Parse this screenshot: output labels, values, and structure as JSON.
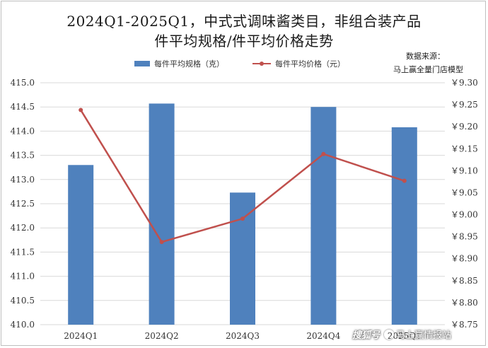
{
  "title_line1": "2024Q1-2025Q1，中式式调味酱类目，非组合装产品",
  "title_line2": "件平均规格/件平均价格走势",
  "source_label": "数据来源：",
  "source_name": "马上赢全量门店模型",
  "watermark": {
    "brand": "搜狐号",
    "name": "马上赢情报站"
  },
  "colors": {
    "bar": "#4f81bd",
    "line": "#c0504d",
    "grid": "#d9d9d9"
  },
  "chart_data": {
    "type": "bar",
    "categories": [
      "2024Q1",
      "2024Q2",
      "2024Q3",
      "2024Q4",
      "2025Q1"
    ],
    "series": [
      {
        "name": "每件平均规格（克）",
        "type": "bar",
        "axis": "left",
        "values": [
          413.3,
          414.57,
          412.73,
          414.5,
          414.08
        ]
      },
      {
        "name": "每件平均价格（元）",
        "type": "line",
        "axis": "right",
        "values": [
          9.238,
          8.938,
          8.991,
          9.138,
          9.077
        ]
      }
    ],
    "y_left": {
      "min": 410.0,
      "max": 415.0,
      "step": 0.5,
      "tick_labels": [
        "410.0",
        "410.5",
        "411.0",
        "411.5",
        "412.0",
        "412.5",
        "413.0",
        "413.5",
        "414.0",
        "414.5",
        "415.0"
      ]
    },
    "y_right": {
      "min": 8.75,
      "max": 9.3,
      "step": 0.05,
      "tick_labels": [
        "￥8.75",
        "￥8.80",
        "￥8.85",
        "￥8.90",
        "￥8.95",
        "￥9.00",
        "￥9.05",
        "￥9.10",
        "￥9.15",
        "￥9.20",
        "￥9.25",
        "￥9.30"
      ]
    },
    "grid": true,
    "legend_position": "top"
  }
}
